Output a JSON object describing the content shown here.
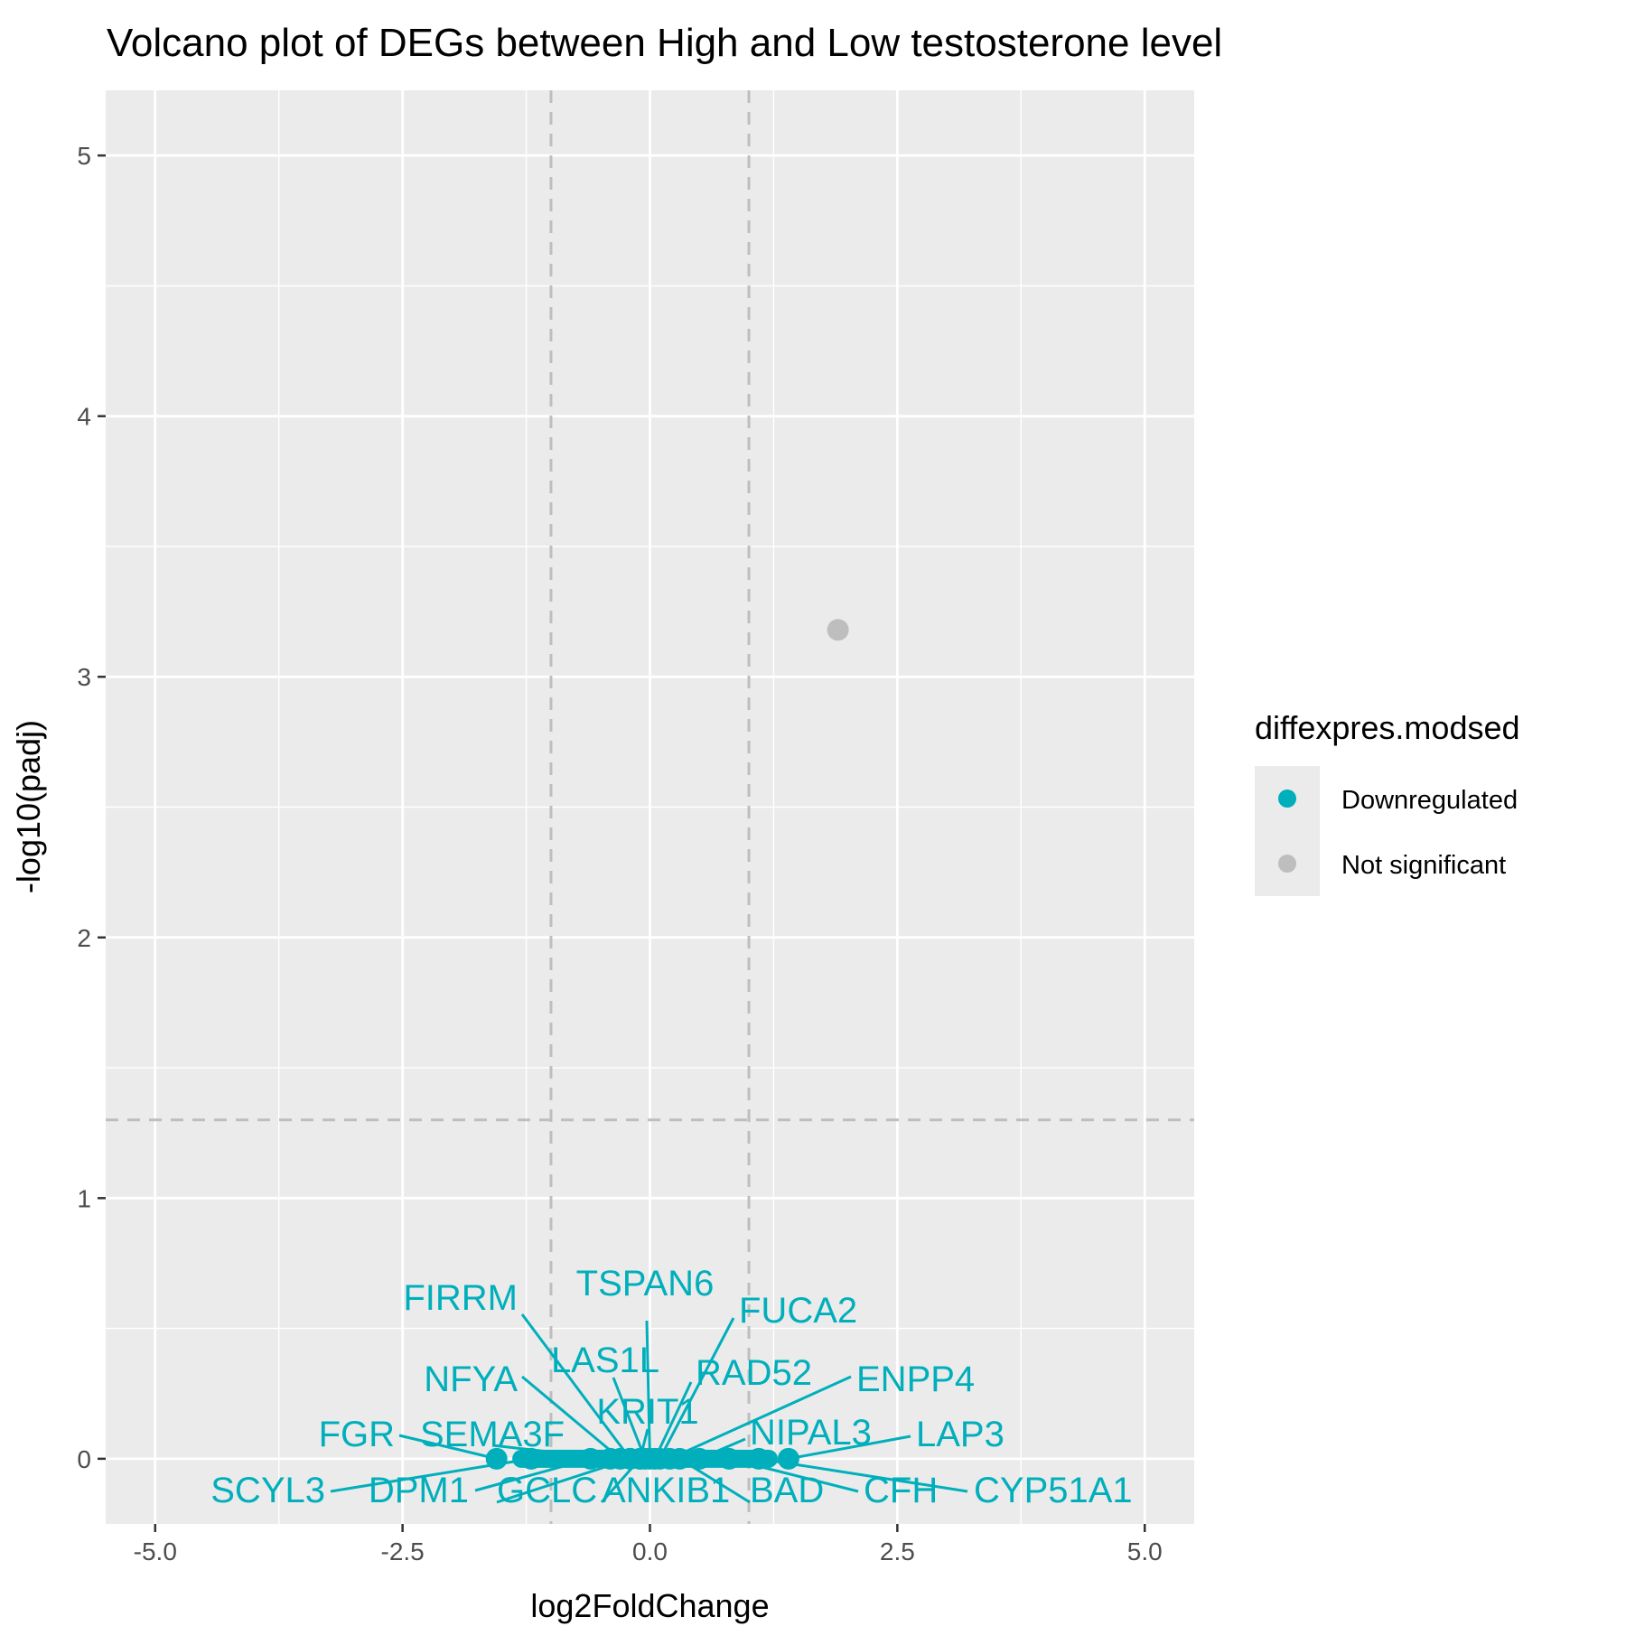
{
  "chart_data": {
    "type": "scatter",
    "title": "Volcano plot of DEGs between High and Low testosterone level",
    "xlabel": "log2FoldChange",
    "ylabel": "-log10(padj)",
    "xlim": [
      -5.5,
      5.5
    ],
    "ylim": [
      -0.25,
      5.25
    ],
    "x_ticks": [
      -5.0,
      -2.5,
      0.0,
      2.5,
      5.0
    ],
    "x_tick_labels": [
      "-5.0",
      "-2.5",
      "0.0",
      "2.5",
      "5.0"
    ],
    "y_ticks": [
      0,
      1,
      2,
      3,
      4,
      5
    ],
    "y_tick_labels": [
      "0",
      "1",
      "2",
      "3",
      "4",
      "5"
    ],
    "thresholds": {
      "x": [
        -1,
        1
      ],
      "y": 1.3
    },
    "grid": true,
    "legend": {
      "title": "diffexpres.modsed",
      "placement": "right",
      "entries": [
        {
          "label": "Downregulated",
          "color": "#00AFBB"
        },
        {
          "label": "Not significant",
          "color": "#BEBEBE"
        }
      ]
    },
    "series": [
      {
        "name": "Downregulated",
        "color": "#00AFBB",
        "points": [
          {
            "gene": "FIRRM",
            "x": -0.2,
            "y": 0
          },
          {
            "gene": "TSPAN6",
            "x": 0.0,
            "y": 0
          },
          {
            "gene": "FUCA2",
            "x": 0.1,
            "y": 0
          },
          {
            "gene": "LAS1L",
            "x": -0.05,
            "y": 0
          },
          {
            "gene": "NFYA",
            "x": -0.3,
            "y": 0
          },
          {
            "gene": "RAD52",
            "x": 0.05,
            "y": 0
          },
          {
            "gene": "ENPP4",
            "x": 0.2,
            "y": 0
          },
          {
            "gene": "KRIT1",
            "x": -0.1,
            "y": 0
          },
          {
            "gene": "FGR",
            "x": -1.55,
            "y": 0
          },
          {
            "gene": "SEMA3F",
            "x": -0.4,
            "y": 0
          },
          {
            "gene": "NIPAL3",
            "x": 0.5,
            "y": 0
          },
          {
            "gene": "LAP3",
            "x": 1.4,
            "y": 0
          },
          {
            "gene": "SCYL3",
            "x": -1.2,
            "y": 0
          },
          {
            "gene": "DPM1",
            "x": -0.6,
            "y": 0
          },
          {
            "gene": "GCLC",
            "x": -0.2,
            "y": 0
          },
          {
            "gene": "ANKIB1",
            "x": -0.1,
            "y": 0
          },
          {
            "gene": "BAD",
            "x": 0.3,
            "y": 0
          },
          {
            "gene": "CFH",
            "x": 0.8,
            "y": 0
          },
          {
            "gene": "CYP51A1",
            "x": 1.1,
            "y": 0
          }
        ]
      },
      {
        "name": "Not significant",
        "color": "#BEBEBE",
        "points": [
          {
            "x": 1.9,
            "y": 3.18
          }
        ]
      }
    ],
    "label_colors": {
      "panel": "#EBEBEB",
      "grid": "#FFFFFF",
      "threshold": "#BEBEBE"
    }
  }
}
